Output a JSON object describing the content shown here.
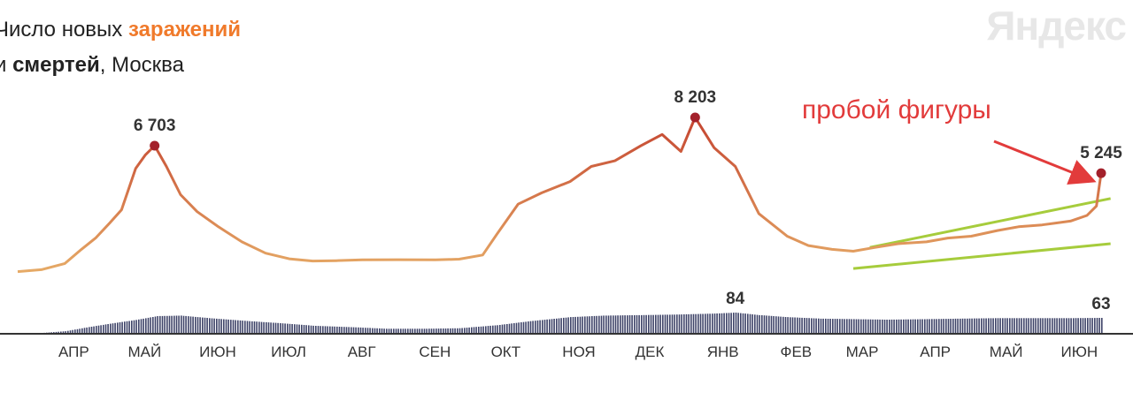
{
  "title": {
    "line1_plain": "Число новых ",
    "line1_highlight": "заражений",
    "line2_prefix": "и ",
    "line2_bold": "смертей",
    "line2_suffix": ", Москва"
  },
  "brand": "Яндекс",
  "colors": {
    "cases_low": "#e8b16a",
    "cases_high": "#c23d2c",
    "highlight": "#f07a2b",
    "bars": "#3e4368",
    "trend_lines": "#a6cc3c",
    "annotation": "#e23b3b",
    "peak_marker": "#a3212b"
  },
  "chart_data": {
    "type": "line",
    "x_ticks": [
      "АПР",
      "МАЙ",
      "ИЮН",
      "ИЮЛ",
      "АВГ",
      "СЕН",
      "ОКТ",
      "НОЯ",
      "ДЕК",
      "ЯНВ",
      "ФЕВ",
      "МАР",
      "АПР",
      "МАЙ",
      "ИЮН"
    ],
    "series": [
      {
        "name": "заражений",
        "kind": "line",
        "x": [
          "2020-03-12",
          "2020-03-22",
          "2020-04-01",
          "2020-04-08",
          "2020-04-14",
          "2020-04-20",
          "2020-04-25",
          "2020-05-01",
          "2020-05-05",
          "2020-05-09",
          "2020-05-14",
          "2020-05-20",
          "2020-05-27",
          "2020-06-05",
          "2020-06-15",
          "2020-06-25",
          "2020-07-05",
          "2020-07-15",
          "2020-07-25",
          "2020-08-05",
          "2020-08-20",
          "2020-09-05",
          "2020-09-15",
          "2020-09-25",
          "2020-10-01",
          "2020-10-10",
          "2020-10-20",
          "2020-11-01",
          "2020-11-10",
          "2020-11-20",
          "2020-12-01",
          "2020-12-10",
          "2020-12-18",
          "2020-12-24",
          "2021-01-01",
          "2021-01-10",
          "2021-01-20",
          "2021-02-01",
          "2021-02-10",
          "2021-02-20",
          "2021-03-01",
          "2021-03-10",
          "2021-03-20",
          "2021-04-01",
          "2021-04-10",
          "2021-04-20",
          "2021-05-01",
          "2021-05-10",
          "2021-05-20",
          "2021-06-01",
          "2021-06-08",
          "2021-06-12",
          "2021-06-14"
        ],
        "y": [
          20,
          120,
          450,
          1200,
          1800,
          2600,
          3300,
          5500,
          6200,
          6703,
          5600,
          4100,
          3200,
          2400,
          1600,
          1000,
          700,
          580,
          600,
          640,
          650,
          640,
          680,
          900,
          2000,
          3600,
          4200,
          4800,
          5600,
          5900,
          6700,
          7300,
          6400,
          8203,
          6600,
          5600,
          3100,
          1900,
          1400,
          1200,
          1100,
          1300,
          1500,
          1600,
          1800,
          1900,
          2200,
          2400,
          2500,
          2700,
          3000,
          3500,
          5245
        ],
        "labels": [
          {
            "x": "2020-05-09",
            "y": 6703,
            "text": "6 703"
          },
          {
            "x": "2020-12-24",
            "y": 8203,
            "text": "8 203"
          },
          {
            "x": "2021-06-14",
            "y": 5245,
            "text": "5 245"
          }
        ]
      },
      {
        "name": "смертей",
        "kind": "bar",
        "x": [
          "2020-03-20",
          "2020-04-01",
          "2020-04-10",
          "2020-04-20",
          "2020-05-01",
          "2020-05-10",
          "2020-05-20",
          "2020-06-01",
          "2020-06-15",
          "2020-07-01",
          "2020-07-15",
          "2020-08-01",
          "2020-08-15",
          "2020-09-01",
          "2020-09-15",
          "2020-10-01",
          "2020-10-15",
          "2020-11-01",
          "2020-11-15",
          "2020-12-01",
          "2020-12-15",
          "2021-01-01",
          "2021-01-10",
          "2021-01-20",
          "2021-02-01",
          "2021-02-15",
          "2021-03-01",
          "2021-03-15",
          "2021-04-01",
          "2021-04-15",
          "2021-05-01",
          "2021-05-15",
          "2021-06-01",
          "2021-06-14"
        ],
        "y": [
          2,
          10,
          25,
          40,
          55,
          70,
          72,
          62,
          52,
          42,
          32,
          26,
          20,
          20,
          22,
          34,
          50,
          66,
          72,
          74,
          76,
          80,
          84,
          74,
          66,
          60,
          58,
          56,
          58,
          60,
          62,
          62,
          62,
          63
        ],
        "labels": [
          {
            "x": "2021-01-10",
            "y": 84,
            "text": "84"
          },
          {
            "x": "2021-06-14",
            "y": 63,
            "text": "63"
          }
        ]
      }
    ],
    "annotation": {
      "text": "пробой фигуры"
    },
    "trendlines": [
      {
        "from": {
          "x": "2021-03-08",
          "y": 1300
        },
        "to": {
          "x": "2021-06-18",
          "y": 3900
        }
      },
      {
        "from": {
          "x": "2021-03-01",
          "y": 180
        },
        "to": {
          "x": "2021-06-18",
          "y": 1500
        }
      }
    ]
  }
}
